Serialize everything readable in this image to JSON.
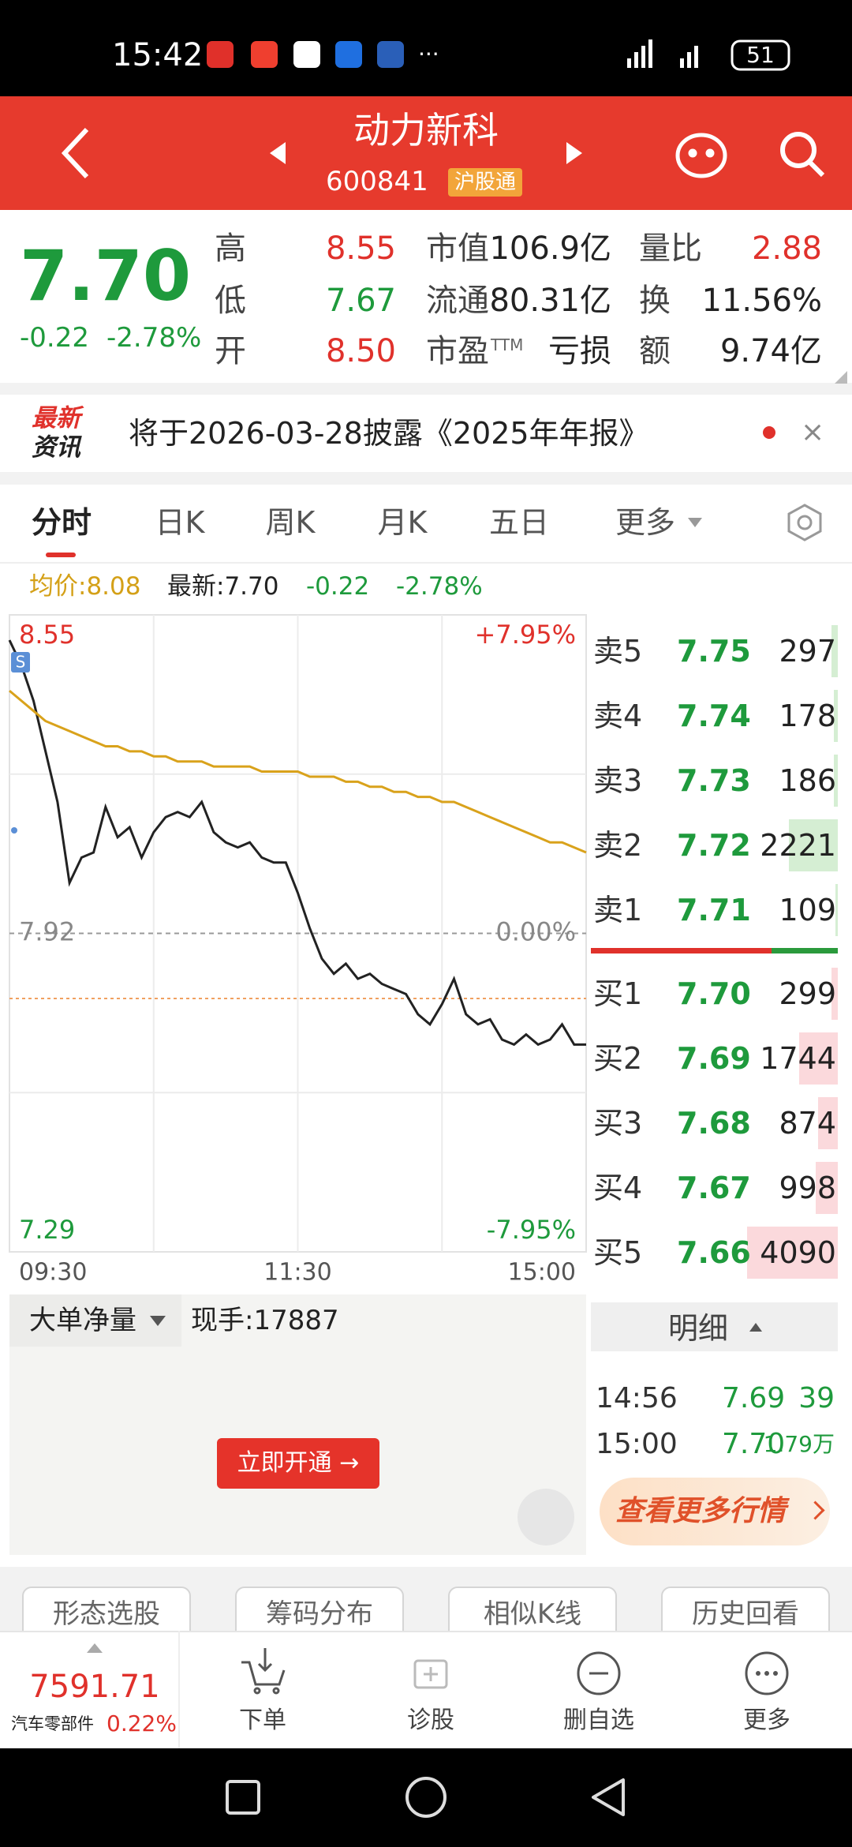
{
  "status_bar": {
    "time": "15:42",
    "battery": "51"
  },
  "header": {
    "title": "动力新科",
    "code": "600841",
    "badge": "沪股通"
  },
  "quote": {
    "price": "7.70",
    "change": "-0.22",
    "change_pct": "-2.78%",
    "fields": [
      {
        "label": "高",
        "value": "8.55"
      },
      {
        "label": "低",
        "value": "7.67"
      },
      {
        "label": "开",
        "value": "8.50"
      },
      {
        "label": "市值",
        "value": "106.9亿"
      },
      {
        "label": "流通",
        "value": "80.31亿"
      },
      {
        "label": "市盈",
        "label_sup": "TTM",
        "value": "亏损"
      },
      {
        "label": "量比",
        "value": "2.88"
      },
      {
        "label": "换",
        "value": "11.56%"
      },
      {
        "label": "额",
        "value": "9.74亿"
      }
    ]
  },
  "news": {
    "logo_top": "最新",
    "logo_bottom": "资讯",
    "text": "将于2026-03-28披露《2025年年报》"
  },
  "tabs": [
    "分时",
    "日K",
    "周K",
    "月K",
    "五日",
    "更多"
  ],
  "info_row": {
    "avg": "均价:8.08",
    "latest": "最新:7.70",
    "change": "-0.22",
    "change_pct": "-2.78%"
  },
  "chart_data": {
    "type": "line",
    "ylim": [
      7.29,
      8.55
    ],
    "yticks": [
      8.55,
      7.92,
      7.29
    ],
    "y2lim": [
      -7.95,
      7.95
    ],
    "y2ticks": [
      {
        "value": 7.95,
        "label": "+7.95%"
      },
      {
        "value": 0,
        "label": "0.00%"
      },
      {
        "value": -7.95,
        "label": "-7.95%"
      }
    ],
    "x_labels": [
      "09:30",
      "11:30",
      "15:00"
    ],
    "annotations": [
      "S"
    ],
    "grid": true,
    "series": [
      {
        "color": "#222222",
        "values": [
          8.5,
          8.45,
          8.38,
          8.28,
          8.18,
          8.02,
          8.07,
          8.08,
          8.17,
          8.11,
          8.13,
          8.07,
          8.12,
          8.15,
          8.16,
          8.15,
          8.18,
          8.12,
          8.1,
          8.09,
          8.1,
          8.07,
          8.06,
          8.06,
          8.0,
          7.93,
          7.87,
          7.84,
          7.86,
          7.83,
          7.84,
          7.82,
          7.81,
          7.8,
          7.76,
          7.74,
          7.78,
          7.83,
          7.76,
          7.74,
          7.75,
          7.71,
          7.7,
          7.72,
          7.7,
          7.71,
          7.74,
          7.7,
          7.7
        ]
      },
      {
        "color": "#d9a21b",
        "values": [
          8.4,
          8.38,
          8.36,
          8.34,
          8.33,
          8.32,
          8.31,
          8.3,
          8.29,
          8.29,
          8.28,
          8.28,
          8.27,
          8.27,
          8.26,
          8.26,
          8.26,
          8.25,
          8.25,
          8.25,
          8.25,
          8.24,
          8.24,
          8.24,
          8.24,
          8.23,
          8.23,
          8.23,
          8.22,
          8.22,
          8.21,
          8.21,
          8.2,
          8.2,
          8.19,
          8.19,
          8.18,
          8.18,
          8.17,
          8.16,
          8.15,
          8.14,
          8.13,
          8.12,
          8.11,
          8.1,
          8.1,
          8.09,
          8.08
        ]
      }
    ]
  },
  "order_book": {
    "asks": [
      {
        "label": "卖5",
        "price": "7.75",
        "volume": 297
      },
      {
        "label": "卖4",
        "price": "7.74",
        "volume": 178
      },
      {
        "label": "卖3",
        "price": "7.73",
        "volume": 186
      },
      {
        "label": "卖2",
        "price": "7.72",
        "volume": 2221
      },
      {
        "label": "卖1",
        "price": "7.71",
        "volume": 109
      }
    ],
    "bids": [
      {
        "label": "买1",
        "price": "7.70",
        "volume": 299
      },
      {
        "label": "买2",
        "price": "7.69",
        "volume": 1744
      },
      {
        "label": "买3",
        "price": "7.68",
        "volume": 874
      },
      {
        "label": "买4",
        "price": "7.67",
        "volume": 998
      },
      {
        "label": "买5",
        "price": "7.66",
        "volume": 4090
      }
    ]
  },
  "bottom_panel": {
    "selector": "大单净量",
    "current_volume": "现手:17887",
    "button": "立即开通 →"
  },
  "ticks_detail": {
    "title": "明细",
    "rows": [
      [
        "14:56",
        "7.69",
        "39"
      ],
      [
        "15:00",
        "7.70",
        "1.79万"
      ]
    ],
    "more": "查看更多行情"
  },
  "tools": [
    "形态选股",
    "筹码分布",
    "相似K线",
    "历史回看"
  ],
  "bottom_nav": {
    "index_value": "7591.71",
    "index_name": "汽车零部件",
    "index_change": "0.22%",
    "items": [
      "下单",
      "诊股",
      "删自选",
      "更多"
    ]
  }
}
